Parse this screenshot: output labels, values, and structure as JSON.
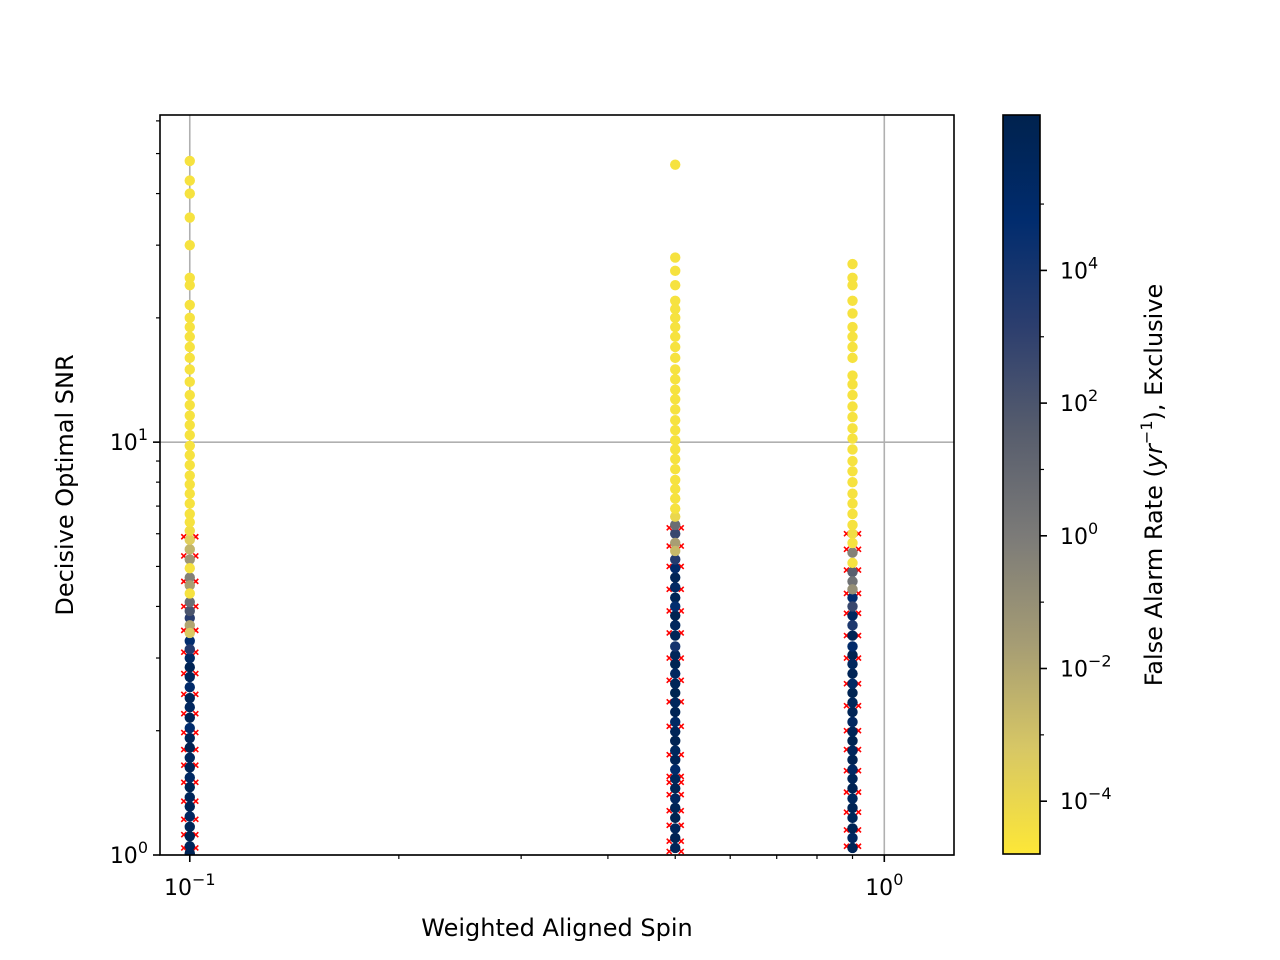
{
  "chart_data": {
    "type": "scatter",
    "title": "",
    "xlabel": "Weighted Aligned Spin",
    "ylabel": "Decisive Optimal SNR",
    "x_scale": "log",
    "y_scale": "log",
    "xlim": [
      0.0906,
      1.26
    ],
    "ylim": [
      1.0,
      62
    ],
    "grid": true,
    "x_ticks": [
      {
        "value": 0.1,
        "base": "10",
        "exp": "−1"
      },
      {
        "value": 1,
        "base": "10",
        "exp": "0"
      }
    ],
    "y_ticks": [
      {
        "value": 1,
        "base": "10",
        "exp": "0"
      },
      {
        "value": 10,
        "base": "10",
        "exp": "1"
      }
    ],
    "colorbar": {
      "label": "False Alarm Rate (yr⁻¹), Exclusive",
      "label_parts": [
        "False Alarm Rate (",
        "yr",
        "−1",
        "), Exclusive"
      ],
      "scale": "log",
      "range": [
        1.6e-05,
        2200000
      ],
      "colormap": "cividis_r",
      "colors": [
        "#fde737",
        "#d7c765",
        "#a59c74",
        "#7c7b78",
        "#575d6d",
        "#2c3e6e",
        "#012c6e",
        "#00224e"
      ],
      "ticks": [
        {
          "value": 0.0001,
          "base": "10",
          "exp": "−4"
        },
        {
          "value": 0.01,
          "base": "10",
          "exp": "−2"
        },
        {
          "value": 1,
          "base": "10",
          "exp": "0"
        },
        {
          "value": 100,
          "base": "10",
          "exp": "2"
        },
        {
          "value": 10000,
          "base": "10",
          "exp": "4"
        }
      ]
    },
    "missed_marker_color": "#ff0000",
    "series": [
      {
        "x": 0.1,
        "found": [
          {
            "snr": 48,
            "far": 3e-05
          },
          {
            "snr": 43,
            "far": 3e-05
          },
          {
            "snr": 40,
            "far": 3e-05
          },
          {
            "snr": 35,
            "far": 3e-05
          },
          {
            "snr": 30,
            "far": 3e-05
          },
          {
            "snr": 25,
            "far": 3e-05
          },
          {
            "snr": 24,
            "far": 3e-05
          },
          {
            "snr": 21.5,
            "far": 3e-05
          },
          {
            "snr": 20,
            "far": 3e-05
          },
          {
            "snr": 19,
            "far": 3e-05
          },
          {
            "snr": 18,
            "far": 3e-05
          },
          {
            "snr": 17,
            "far": 3e-05
          },
          {
            "snr": 16,
            "far": 3e-05
          },
          {
            "snr": 15,
            "far": 3e-05
          },
          {
            "snr": 14,
            "far": 3e-05
          },
          {
            "snr": 13,
            "far": 3e-05
          },
          {
            "snr": 12.3,
            "far": 3e-05
          },
          {
            "snr": 11.6,
            "far": 3e-05
          },
          {
            "snr": 11,
            "far": 3e-05
          },
          {
            "snr": 10.4,
            "far": 3e-05
          },
          {
            "snr": 9.8,
            "far": 3e-05
          },
          {
            "snr": 9.3,
            "far": 3e-05
          },
          {
            "snr": 8.8,
            "far": 3e-05
          },
          {
            "snr": 8.3,
            "far": 3e-05
          },
          {
            "snr": 7.9,
            "far": 3e-05
          },
          {
            "snr": 7.5,
            "far": 3e-05
          },
          {
            "snr": 7.1,
            "far": 3e-05
          },
          {
            "snr": 6.7,
            "far": 3e-05
          },
          {
            "snr": 6.4,
            "far": 3e-05
          },
          {
            "snr": 6.1,
            "far": 5e-05
          },
          {
            "snr": 5.8,
            "far": 0.0003
          },
          {
            "snr": 5.5,
            "far": 0.003
          },
          {
            "snr": 5.2,
            "far": 0.05
          },
          {
            "snr": 4.95,
            "far": 3e-05
          },
          {
            "snr": 4.7,
            "far": 0.5
          },
          {
            "snr": 4.5,
            "far": 0.02
          },
          {
            "snr": 4.3,
            "far": 3e-05
          },
          {
            "snr": 4.1,
            "far": 5
          },
          {
            "snr": 3.9,
            "far": 100
          },
          {
            "snr": 3.75,
            "far": 2000
          },
          {
            "snr": 3.6,
            "far": 0.01
          },
          {
            "snr": 3.45,
            "far": 0.0005
          },
          {
            "snr": 3.3,
            "far": 50000
          },
          {
            "snr": 3.15,
            "far": 3000
          },
          {
            "snr": 3.0,
            "far": 200000
          },
          {
            "snr": 2.85,
            "far": 1000000
          },
          {
            "snr": 2.7,
            "far": 500000
          },
          {
            "snr": 2.55,
            "far": 100000
          },
          {
            "snr": 2.4,
            "far": 800000
          },
          {
            "snr": 2.28,
            "far": 300000
          },
          {
            "snr": 2.15,
            "far": 1000000
          },
          {
            "snr": 2.03,
            "far": 60000
          },
          {
            "snr": 1.92,
            "far": 700000
          },
          {
            "snr": 1.82,
            "far": 1500000
          },
          {
            "snr": 1.72,
            "far": 400000
          },
          {
            "snr": 1.63,
            "far": 900000
          },
          {
            "snr": 1.54,
            "far": 200000
          },
          {
            "snr": 1.46,
            "far": 1200000
          },
          {
            "snr": 1.38,
            "far": 600000
          },
          {
            "snr": 1.31,
            "far": 1000000
          },
          {
            "snr": 1.24,
            "far": 300000
          },
          {
            "snr": 1.17,
            "far": 800000
          },
          {
            "snr": 1.11,
            "far": 1500000
          },
          {
            "snr": 1.05,
            "far": 500000
          },
          {
            "snr": 1.01,
            "far": 1000000
          }
        ],
        "missed_snr": [
          5.9,
          5.3,
          4.6,
          4.0,
          3.5,
          3.1,
          2.75,
          2.45,
          2.2,
          1.98,
          1.8,
          1.65,
          1.5,
          1.35,
          1.22,
          1.12,
          1.04
        ]
      },
      {
        "x": 0.5,
        "found": [
          {
            "snr": 47,
            "far": 3e-05
          },
          {
            "snr": 28,
            "far": 3e-05
          },
          {
            "snr": 26,
            "far": 3e-05
          },
          {
            "snr": 24,
            "far": 3e-05
          },
          {
            "snr": 22,
            "far": 3e-05
          },
          {
            "snr": 21,
            "far": 3e-05
          },
          {
            "snr": 20,
            "far": 3e-05
          },
          {
            "snr": 19,
            "far": 3e-05
          },
          {
            "snr": 18,
            "far": 3e-05
          },
          {
            "snr": 17,
            "far": 3e-05
          },
          {
            "snr": 16,
            "far": 3e-05
          },
          {
            "snr": 15,
            "far": 3e-05
          },
          {
            "snr": 14.2,
            "far": 3e-05
          },
          {
            "snr": 13.4,
            "far": 3e-05
          },
          {
            "snr": 12.7,
            "far": 3e-05
          },
          {
            "snr": 12,
            "far": 3e-05
          },
          {
            "snr": 11.3,
            "far": 3e-05
          },
          {
            "snr": 10.7,
            "far": 3e-05
          },
          {
            "snr": 10.1,
            "far": 3e-05
          },
          {
            "snr": 9.6,
            "far": 3e-05
          },
          {
            "snr": 9.1,
            "far": 3e-05
          },
          {
            "snr": 8.6,
            "far": 3e-05
          },
          {
            "snr": 8.1,
            "far": 3e-05
          },
          {
            "snr": 7.7,
            "far": 3e-05
          },
          {
            "snr": 7.3,
            "far": 3e-05
          },
          {
            "snr": 6.9,
            "far": 3e-05
          },
          {
            "snr": 6.6,
            "far": 0.0001
          },
          {
            "snr": 6.3,
            "far": 5
          },
          {
            "snr": 6.0,
            "far": 500
          },
          {
            "snr": 5.7,
            "far": 0.02
          },
          {
            "snr": 5.45,
            "far": 0.002
          },
          {
            "snr": 5.2,
            "far": 3000
          },
          {
            "snr": 4.95,
            "far": 100000
          },
          {
            "snr": 4.7,
            "far": 800000
          },
          {
            "snr": 4.45,
            "far": 200000
          },
          {
            "snr": 4.2,
            "far": 1000000
          },
          {
            "snr": 4.0,
            "far": 50000
          },
          {
            "snr": 3.8,
            "far": 1500000
          },
          {
            "snr": 3.6,
            "far": 400000
          },
          {
            "snr": 3.4,
            "far": 900000
          },
          {
            "snr": 3.2,
            "far": 10000
          },
          {
            "snr": 3.05,
            "far": 600000
          },
          {
            "snr": 2.9,
            "far": 1200000
          },
          {
            "snr": 2.75,
            "far": 300000
          },
          {
            "snr": 2.6,
            "far": 800000
          },
          {
            "snr": 2.47,
            "far": 1500000
          },
          {
            "snr": 2.34,
            "far": 500000
          },
          {
            "snr": 2.22,
            "far": 1000000
          },
          {
            "snr": 2.1,
            "far": 200000
          },
          {
            "snr": 1.99,
            "far": 700000
          },
          {
            "snr": 1.89,
            "far": 1300000
          },
          {
            "snr": 1.79,
            "far": 400000
          },
          {
            "snr": 1.7,
            "far": 900000
          },
          {
            "snr": 1.61,
            "far": 100000
          },
          {
            "snr": 1.53,
            "far": 600000
          },
          {
            "snr": 1.45,
            "far": 1100000
          },
          {
            "snr": 1.37,
            "far": 300000
          },
          {
            "snr": 1.3,
            "far": 800000
          },
          {
            "snr": 1.23,
            "far": 1500000
          },
          {
            "snr": 1.16,
            "far": 500000
          },
          {
            "snr": 1.1,
            "far": 1000000
          },
          {
            "snr": 1.04,
            "far": 700000
          }
        ],
        "missed_snr": [
          6.2,
          5.6,
          5.0,
          4.4,
          3.9,
          3.45,
          3.0,
          2.65,
          2.35,
          2.05,
          1.75,
          1.55,
          1.5,
          1.4,
          1.28,
          1.18,
          1.08,
          1.02
        ]
      },
      {
        "x": 0.9,
        "found": [
          {
            "snr": 27,
            "far": 3e-05
          },
          {
            "snr": 25,
            "far": 3e-05
          },
          {
            "snr": 24,
            "far": 3e-05
          },
          {
            "snr": 22,
            "far": 3e-05
          },
          {
            "snr": 20.5,
            "far": 3e-05
          },
          {
            "snr": 19,
            "far": 3e-05
          },
          {
            "snr": 18,
            "far": 3e-05
          },
          {
            "snr": 17,
            "far": 3e-05
          },
          {
            "snr": 16,
            "far": 3e-05
          },
          {
            "snr": 14.5,
            "far": 3e-05
          },
          {
            "snr": 13.8,
            "far": 3e-05
          },
          {
            "snr": 13,
            "far": 3e-05
          },
          {
            "snr": 12.2,
            "far": 3e-05
          },
          {
            "snr": 11.5,
            "far": 3e-05
          },
          {
            "snr": 10.8,
            "far": 3e-05
          },
          {
            "snr": 10.2,
            "far": 3e-05
          },
          {
            "snr": 9.6,
            "far": 3e-05
          },
          {
            "snr": 9.0,
            "far": 3e-05
          },
          {
            "snr": 8.5,
            "far": 3e-05
          },
          {
            "snr": 8.0,
            "far": 3e-05
          },
          {
            "snr": 7.5,
            "far": 3e-05
          },
          {
            "snr": 7.1,
            "far": 3e-05
          },
          {
            "snr": 6.7,
            "far": 3e-05
          },
          {
            "snr": 6.3,
            "far": 3e-05
          },
          {
            "snr": 6.0,
            "far": 5e-05
          },
          {
            "snr": 5.7,
            "far": 3e-05
          },
          {
            "snr": 5.4,
            "far": 0.5
          },
          {
            "snr": 5.1,
            "far": 3e-05
          },
          {
            "snr": 4.85,
            "far": 30
          },
          {
            "snr": 4.6,
            "far": 3
          },
          {
            "snr": 4.4,
            "far": 0.1
          },
          {
            "snr": 4.2,
            "far": 50000
          },
          {
            "snr": 4.0,
            "far": 500
          },
          {
            "snr": 3.8,
            "far": 300000
          },
          {
            "snr": 3.6,
            "far": 5000
          },
          {
            "snr": 3.4,
            "far": 1000000
          },
          {
            "snr": 3.2,
            "far": 100000
          },
          {
            "snr": 3.05,
            "far": 1500000
          },
          {
            "snr": 2.9,
            "far": 400000
          },
          {
            "snr": 2.75,
            "far": 900000
          },
          {
            "snr": 2.6,
            "far": 200000
          },
          {
            "snr": 2.47,
            "far": 1200000
          },
          {
            "snr": 2.34,
            "far": 600000
          },
          {
            "snr": 2.22,
            "far": 1000000
          },
          {
            "snr": 2.1,
            "far": 300000
          },
          {
            "snr": 1.99,
            "far": 800000
          },
          {
            "snr": 1.89,
            "far": 1500000
          },
          {
            "snr": 1.79,
            "far": 500000
          },
          {
            "snr": 1.7,
            "far": 1000000
          },
          {
            "snr": 1.61,
            "far": 200000
          },
          {
            "snr": 1.53,
            "far": 700000
          },
          {
            "snr": 1.45,
            "far": 1300000
          },
          {
            "snr": 1.37,
            "far": 400000
          },
          {
            "snr": 1.3,
            "far": 900000
          },
          {
            "snr": 1.23,
            "far": 600000
          },
          {
            "snr": 1.16,
            "far": 1100000
          },
          {
            "snr": 1.1,
            "far": 300000
          },
          {
            "snr": 1.04,
            "far": 800000
          }
        ],
        "missed_snr": [
          6.0,
          5.5,
          4.9,
          4.3,
          3.85,
          3.4,
          3.0,
          2.6,
          2.3,
          2.0,
          1.8,
          1.6,
          1.42,
          1.27,
          1.15,
          1.05
        ]
      }
    ]
  }
}
